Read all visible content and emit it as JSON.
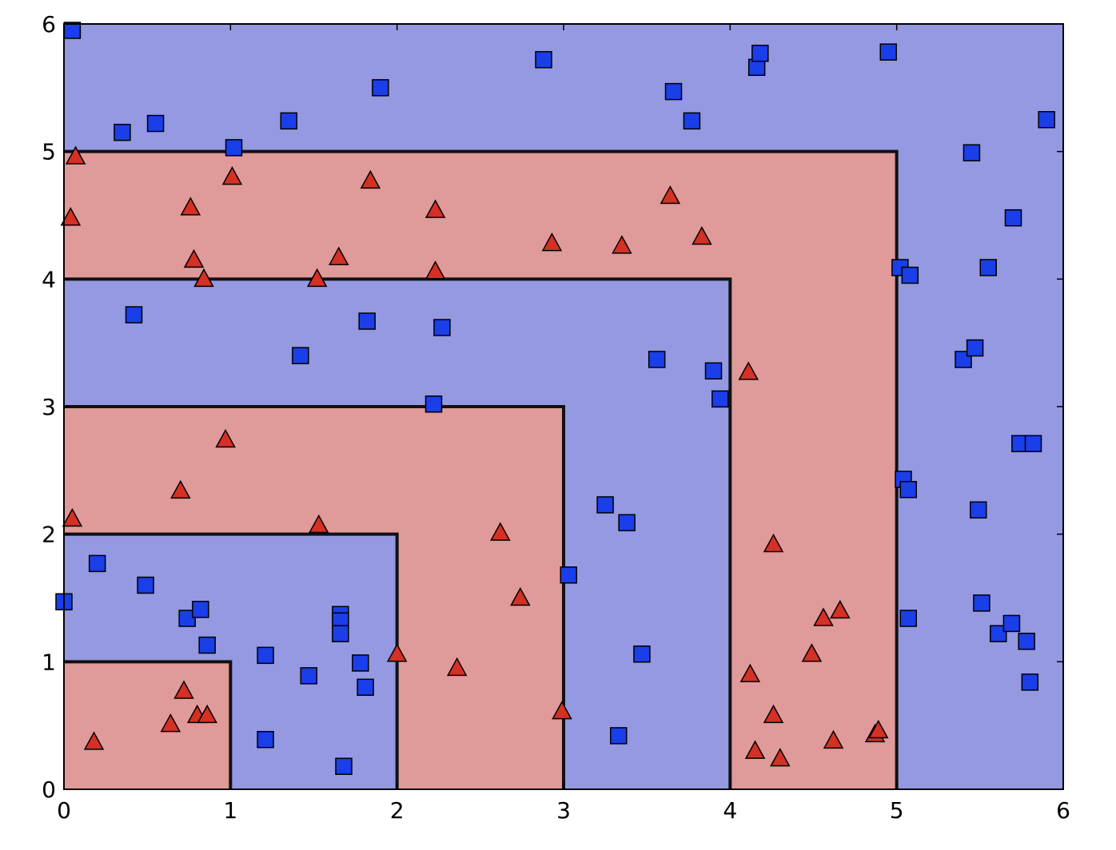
{
  "chart_data": {
    "type": "scatter",
    "title": "",
    "xlabel": "",
    "ylabel": "",
    "xlim": [
      0,
      6
    ],
    "ylim": [
      0,
      6
    ],
    "grid": false,
    "xticks": [
      "0",
      "1",
      "2",
      "3",
      "4",
      "5",
      "6"
    ],
    "yticks": [
      "0",
      "1",
      "2",
      "3",
      "4",
      "5",
      "6"
    ],
    "regions": [
      {
        "class": "blue",
        "x": [
          0,
          6
        ],
        "y": [
          0,
          6
        ]
      },
      {
        "class": "red",
        "x": [
          0,
          5
        ],
        "y": [
          0,
          5
        ]
      },
      {
        "class": "blue",
        "x": [
          0,
          4
        ],
        "y": [
          0,
          4
        ]
      },
      {
        "class": "red",
        "x": [
          0,
          3
        ],
        "y": [
          0,
          3
        ]
      },
      {
        "class": "blue",
        "x": [
          0,
          2
        ],
        "y": [
          0,
          2
        ]
      },
      {
        "class": "red",
        "x": [
          0,
          1
        ],
        "y": [
          0,
          1
        ]
      }
    ],
    "colors": {
      "blue_region": "#9499e2",
      "red_region": "#e09a99",
      "blue_marker": "#1a3ee8",
      "red_marker": "#d43024",
      "boundary": "#111111"
    },
    "series": [
      {
        "marker": "square",
        "color": "#1a3ee8",
        "x": [
          0.05,
          0.35,
          0.55,
          1.02,
          1.35,
          1.9,
          2.88,
          3.66,
          3.77,
          4.16,
          4.18,
          4.95,
          5.45,
          5.7,
          5.9,
          5.02,
          5.08,
          5.55,
          0.42,
          1.42,
          1.82,
          2.27,
          3.56,
          3.9,
          3.94,
          5.4,
          5.47,
          2.22,
          5.74,
          5.82,
          5.04,
          5.07,
          5.49,
          3.25,
          3.38,
          0.2,
          0.49,
          0.0,
          0.74,
          0.82,
          0.86,
          1.21,
          1.66,
          1.66,
          1.66,
          1.78,
          1.81,
          1.47,
          1.21,
          1.68,
          3.03,
          3.47,
          5.07,
          5.51,
          5.61,
          5.69,
          5.78,
          5.8,
          3.33
        ],
        "y": [
          5.95,
          5.15,
          5.22,
          5.03,
          5.24,
          5.5,
          5.72,
          5.47,
          5.24,
          5.66,
          5.77,
          5.78,
          4.99,
          4.48,
          5.25,
          4.09,
          4.03,
          4.09,
          3.72,
          3.4,
          3.67,
          3.62,
          3.37,
          3.28,
          3.06,
          3.37,
          3.46,
          3.02,
          2.71,
          2.71,
          2.43,
          2.35,
          2.19,
          2.23,
          2.09,
          1.77,
          1.6,
          1.47,
          1.34,
          1.41,
          1.13,
          1.05,
          1.37,
          1.32,
          1.22,
          0.99,
          0.8,
          0.89,
          0.39,
          0.18,
          1.68,
          1.06,
          1.34,
          1.46,
          1.22,
          1.3,
          1.16,
          0.84,
          0.42
        ]
      },
      {
        "marker": "triangle",
        "color": "#d43024",
        "x": [
          0.07,
          0.04,
          1.01,
          1.84,
          0.76,
          2.23,
          0.78,
          0.84,
          1.65,
          1.52,
          2.23,
          2.93,
          3.35,
          3.64,
          3.83,
          4.11,
          0.97,
          0.7,
          0.05,
          1.53,
          2.62,
          2.74,
          4.26,
          0.72,
          0.64,
          0.8,
          0.86,
          0.18,
          2.0,
          2.36,
          2.99,
          4.12,
          4.15,
          4.26,
          4.3,
          4.49,
          4.56,
          4.66,
          4.62,
          4.87,
          4.89
        ],
        "y": [
          4.96,
          4.48,
          4.8,
          4.77,
          4.56,
          4.54,
          4.15,
          4.0,
          4.17,
          4.0,
          4.06,
          4.28,
          4.26,
          4.65,
          4.33,
          3.27,
          2.74,
          2.34,
          2.12,
          2.07,
          2.01,
          1.5,
          1.92,
          0.77,
          0.51,
          0.58,
          0.58,
          0.37,
          1.06,
          0.95,
          0.61,
          0.9,
          0.3,
          0.58,
          0.24,
          1.06,
          1.34,
          1.4,
          0.38,
          0.43,
          0.46
        ]
      }
    ]
  }
}
